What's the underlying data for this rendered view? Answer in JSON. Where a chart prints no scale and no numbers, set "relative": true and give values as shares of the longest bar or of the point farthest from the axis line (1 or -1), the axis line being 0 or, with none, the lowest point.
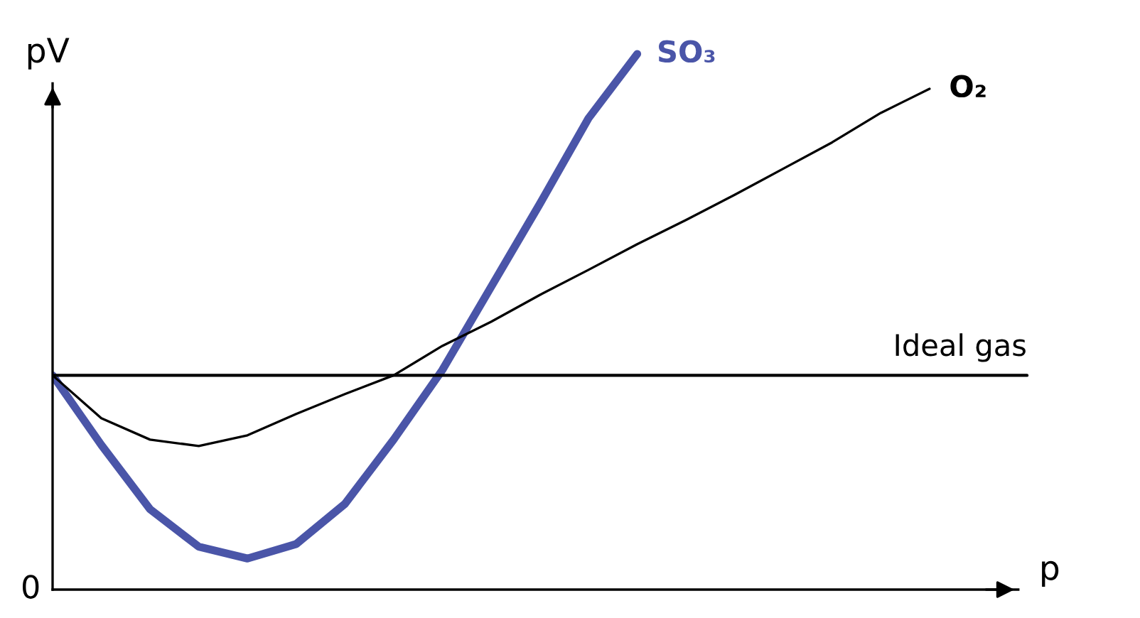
{
  "chart_data": {
    "type": "line",
    "relative": true,
    "xlabel": "p",
    "ylabel": "pV",
    "annotations": [
      "0"
    ],
    "legend": false,
    "marker": "none",
    "line_style": "solid",
    "categories": [
      null,
      null,
      null,
      null,
      null,
      null,
      null,
      null,
      null,
      null,
      null,
      null,
      null,
      null,
      null,
      null,
      null,
      null,
      null,
      null,
      null
    ],
    "series": [
      {
        "name": "SO₃",
        "color": "#4a55a8",
        "values": [
          0.4,
          0.27,
          0.15,
          0.08,
          0.058,
          0.085,
          0.16,
          0.28,
          0.41,
          0.565,
          0.72,
          0.88,
          1.0,
          null,
          null,
          null,
          null,
          null,
          null,
          null,
          null
        ]
      },
      {
        "name": "O₂",
        "color": "#000000",
        "values": [
          0.4,
          0.32,
          0.28,
          0.268,
          0.288,
          0.328,
          0.365,
          0.4,
          0.455,
          0.5,
          0.55,
          0.597,
          0.645,
          0.69,
          0.737,
          0.786,
          0.835,
          0.89,
          0.935,
          null,
          null
        ]
      },
      {
        "name": "Ideal gas",
        "color": "#000000",
        "values": [
          0.4,
          0.4,
          0.4,
          0.4,
          0.4,
          0.4,
          0.4,
          0.4,
          0.4,
          0.4,
          0.4,
          0.4,
          0.4,
          0.4,
          0.4,
          0.4,
          0.4,
          0.4,
          0.4,
          0.4,
          0.4
        ]
      }
    ]
  }
}
